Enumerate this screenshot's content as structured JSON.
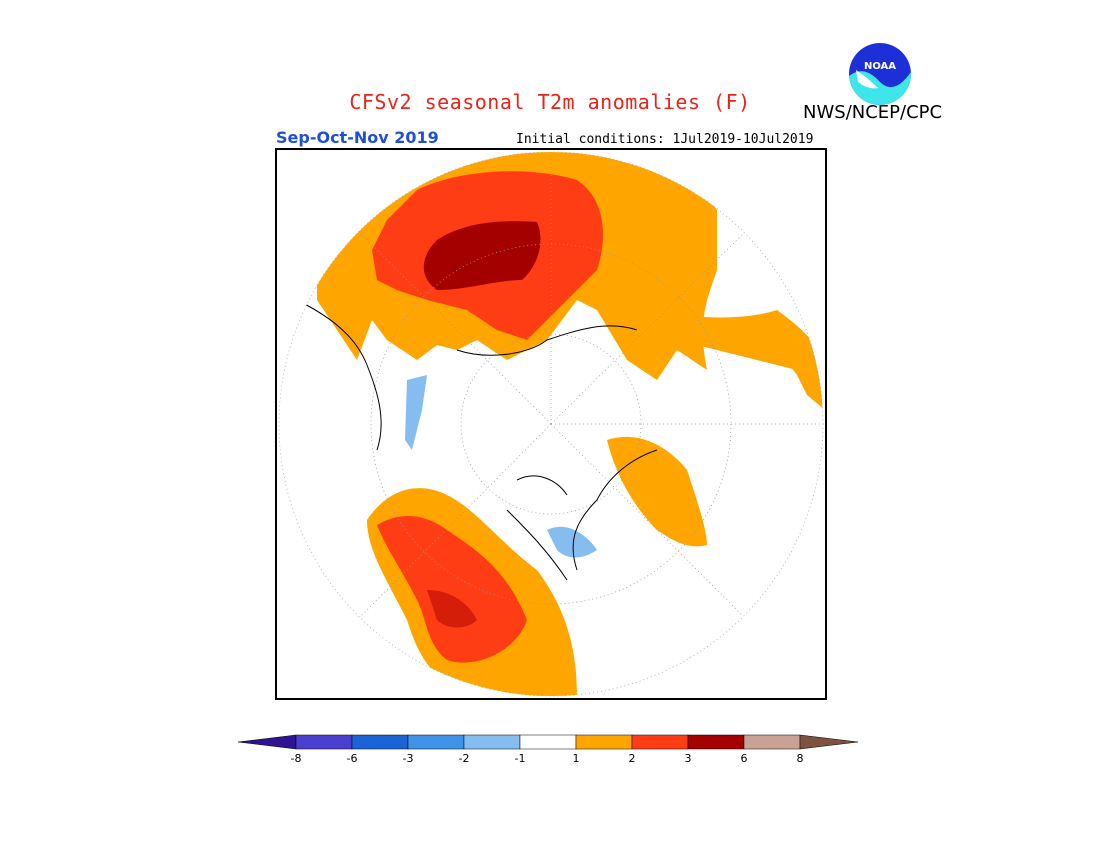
{
  "header": {
    "title": "CFSv2 seasonal T2m anomalies (F)",
    "title_color": "#e8231a",
    "org": "NWS/NCEP/CPC",
    "season": "Sep-Oct-Nov 2019",
    "season_color": "#1f4fd6",
    "initial_conditions": "Initial conditions: 1Jul2019-10Jul2019"
  },
  "logo": {
    "text": "NOAA",
    "icon": "noaa-logo-icon"
  },
  "colorbar": {
    "ticks": [
      "-8",
      "-6",
      "-3",
      "-2",
      "-1",
      "1",
      "2",
      "3",
      "6",
      "8"
    ],
    "colors": [
      "#2e1491",
      "#4a3fcf",
      "#1a64d6",
      "#3f93e8",
      "#86bdf0",
      "#ffffff",
      "#ffa500",
      "#ff3d14",
      "#a50000",
      "#c9a295",
      "#7d5240"
    ]
  }
}
